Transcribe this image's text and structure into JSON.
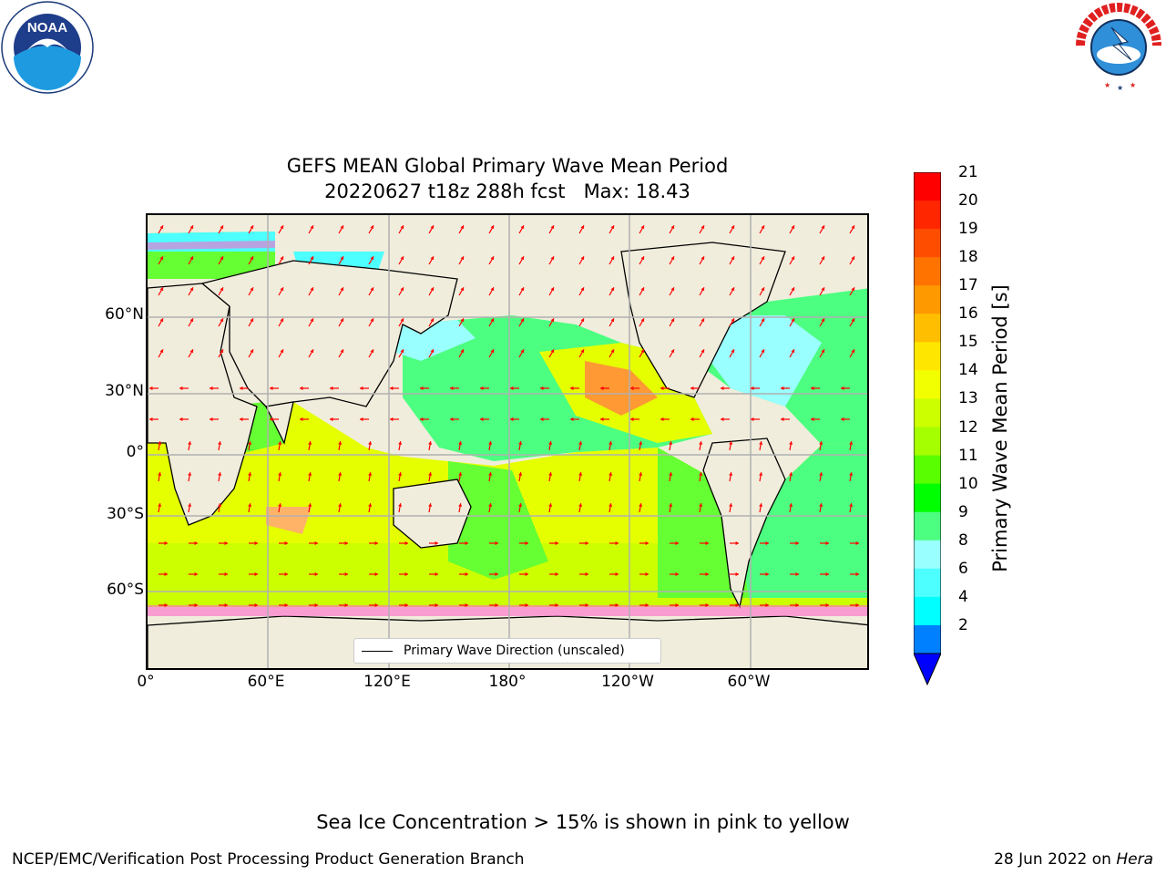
{
  "header": {
    "title": "GEFS MEAN Global Primary Wave Mean Period",
    "subtitle": "20220627 t18z 288h fcst   Max: 18.43"
  },
  "logos": {
    "noaa": {
      "text": "NOAA",
      "ring_text": "NATIONAL OCEANIC AND ATMOSPHERIC ADMINISTRATION · U.S. DEPARTMENT OF COMMERCE"
    },
    "nws": {
      "ring_text": "NATIONAL WEATHER SERVICE"
    }
  },
  "map": {
    "lat_ticks": [
      "60°N",
      "30°N",
      "0°",
      "30°S",
      "60°S"
    ],
    "lon_ticks": [
      "0°",
      "60°E",
      "120°E",
      "180°",
      "120°W",
      "60°W"
    ],
    "legend_label": "Primary Wave Direction (unscaled)"
  },
  "colorbar": {
    "label": "Primary Wave Mean Period [s]",
    "ticks": [
      "21",
      "20",
      "19",
      "18",
      "17",
      "16",
      "15",
      "14",
      "13",
      "12",
      "11",
      "10",
      "9",
      "8",
      "6",
      "4",
      "2"
    ],
    "colors": [
      "#ff0000",
      "#ff2600",
      "#ff4d00",
      "#ff7300",
      "#ff9900",
      "#ffbf00",
      "#ffe600",
      "#f2ff00",
      "#ccff00",
      "#a6ff00",
      "#59ff00",
      "#00ff00",
      "#4dff80",
      "#99ffff",
      "#4dffff",
      "#00ffff",
      "#0080ff"
    ],
    "extend_color": "#0000ff"
  },
  "footer": {
    "ice_note": "Sea Ice Concentration > 15% is shown in pink to yellow",
    "credit": "NCEP/EMC/Verification Post Processing Product Generation Branch",
    "date": "28 Jun 2022 on",
    "machine": "Hera"
  }
}
